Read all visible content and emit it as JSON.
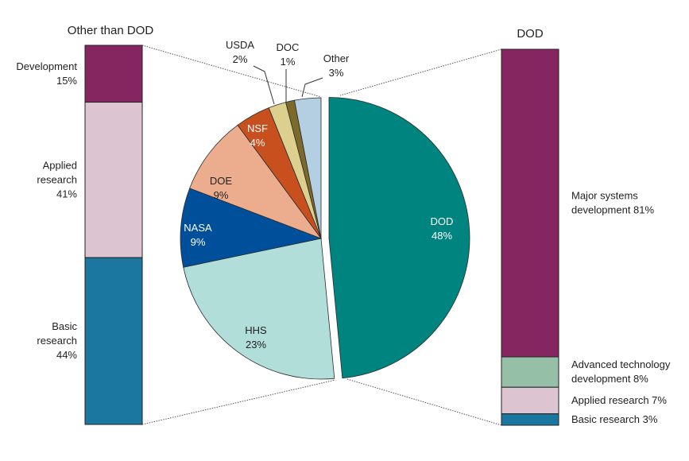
{
  "chart_data": {
    "type": "pie",
    "unit": "%",
    "pie": {
      "categories": [
        "DOD",
        "HHS",
        "NASA",
        "DOE",
        "NSF",
        "USDA",
        "DOC",
        "Other"
      ],
      "values": [
        48,
        23,
        9,
        9,
        4,
        2,
        1,
        3
      ],
      "colors": [
        "#00847f",
        "#b2ded9",
        "#004f9b",
        "#ecad8e",
        "#c8501f",
        "#ddd08e",
        "#7c6a2a",
        "#b4cfe1"
      ],
      "label_colors": [
        "#ffffff",
        "#222222",
        "#ffffff",
        "#222222",
        "#ffffff",
        "#222222",
        "#222222",
        "#222222"
      ],
      "labels": [
        "DOD\n48%",
        "HHS\n23%",
        "NASA\n9%",
        "DOE\n9%",
        "NSF\n4%",
        "USDA\n2%",
        "DOC\n1%",
        "Other\n3%"
      ],
      "exploded": "DOD"
    },
    "left_bar": {
      "title": "Other than DOD",
      "categories": [
        "Development",
        "Applied research",
        "Basic research"
      ],
      "values": [
        15,
        41,
        44
      ],
      "colors": [
        "#862661",
        "#dcc4d1",
        "#1b76a0"
      ],
      "labels": [
        "Development\n15%",
        "Applied\nresearch\n41%",
        "Basic\nresearch\n44%"
      ]
    },
    "right_bar": {
      "title": "DOD",
      "categories": [
        "Major systems development",
        "Advanced technology development",
        "Applied research",
        "Basic research"
      ],
      "values": [
        81,
        8,
        7,
        3
      ],
      "colors": [
        "#862661",
        "#96bfa7",
        "#dcc4d1",
        "#1b76a0"
      ],
      "labels": [
        "Major systems\ndevelopment 81%",
        "Advanced technology\ndevelopment 8%",
        "Applied research 7%",
        "Basic research 3%"
      ]
    }
  }
}
